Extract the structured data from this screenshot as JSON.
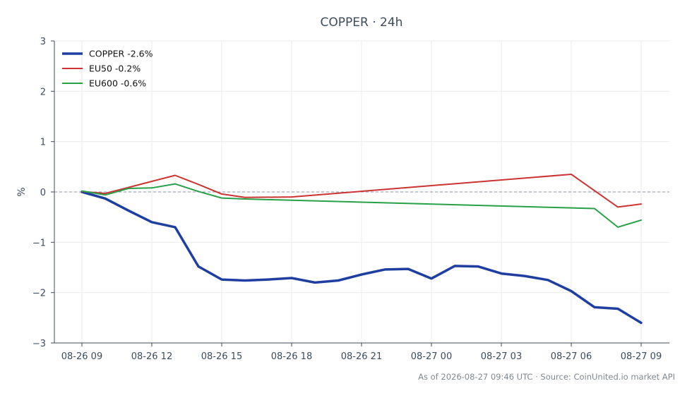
{
  "chart_data": {
    "type": "line",
    "title": "COPPER · 24h",
    "ylabel": "%",
    "xlabel": "",
    "xlim": [
      0,
      24.1
    ],
    "ylim": [
      -3,
      3
    ],
    "x_ticks": [
      {
        "x": 0,
        "label": "08-26 09"
      },
      {
        "x": 3,
        "label": "08-26 12"
      },
      {
        "x": 6,
        "label": "08-26 15"
      },
      {
        "x": 9,
        "label": "08-26 18"
      },
      {
        "x": 12,
        "label": "08-26 21"
      },
      {
        "x": 15,
        "label": "08-27 00"
      },
      {
        "x": 18,
        "label": "08-27 03"
      },
      {
        "x": 21,
        "label": "08-27 06"
      },
      {
        "x": 24,
        "label": "08-27 09"
      }
    ],
    "y_ticks": [
      {
        "y": 3,
        "label": "3"
      },
      {
        "y": 2,
        "label": "2"
      },
      {
        "y": 1,
        "label": "1"
      },
      {
        "y": 0,
        "label": "0"
      },
      {
        "y": -1,
        "label": "−1"
      },
      {
        "y": -2,
        "label": "−2"
      },
      {
        "y": -3,
        "label": "−3"
      }
    ],
    "grid": true,
    "zero_line": true,
    "legend_position": "top-left",
    "series": [
      {
        "name": "COPPER -2.6%",
        "color": "#1f3fa0",
        "width": 3.5,
        "x": [
          0,
          1,
          2,
          3,
          4,
          5,
          6,
          7,
          8,
          9,
          10,
          11,
          12,
          13,
          14,
          15,
          16,
          17,
          18,
          19,
          20,
          21,
          22,
          23,
          24
        ],
        "y": [
          0.0,
          -0.13,
          -0.37,
          -0.6,
          -0.7,
          -1.48,
          -1.74,
          -1.76,
          -1.74,
          -1.71,
          -1.8,
          -1.76,
          -1.64,
          -1.54,
          -1.53,
          -1.72,
          -1.47,
          -1.48,
          -1.62,
          -1.67,
          -1.75,
          -1.97,
          -2.29,
          -2.32,
          -2.6
        ]
      },
      {
        "name": "EU50 -0.2%",
        "color": "#cc3333",
        "width": 2,
        "x": [
          0,
          1,
          2,
          3,
          4,
          5,
          6,
          7,
          9,
          21,
          23,
          24
        ],
        "y": [
          0.01,
          -0.03,
          0.09,
          0.21,
          0.33,
          0.15,
          -0.04,
          -0.11,
          -0.1,
          0.35,
          -0.3,
          -0.24
        ]
      },
      {
        "name": "EU600 -0.6%",
        "color": "#27a048",
        "width": 2,
        "x": [
          0,
          1,
          2,
          3,
          4,
          5,
          6,
          7,
          22,
          23,
          24
        ],
        "y": [
          0.02,
          -0.06,
          0.07,
          0.08,
          0.16,
          0.01,
          -0.12,
          -0.14,
          -0.33,
          -0.7,
          -0.56
        ]
      }
    ]
  },
  "footer": {
    "source_text": "As of 2026-08-27 09:46 UTC · Source: CoinUnited.io market API"
  }
}
